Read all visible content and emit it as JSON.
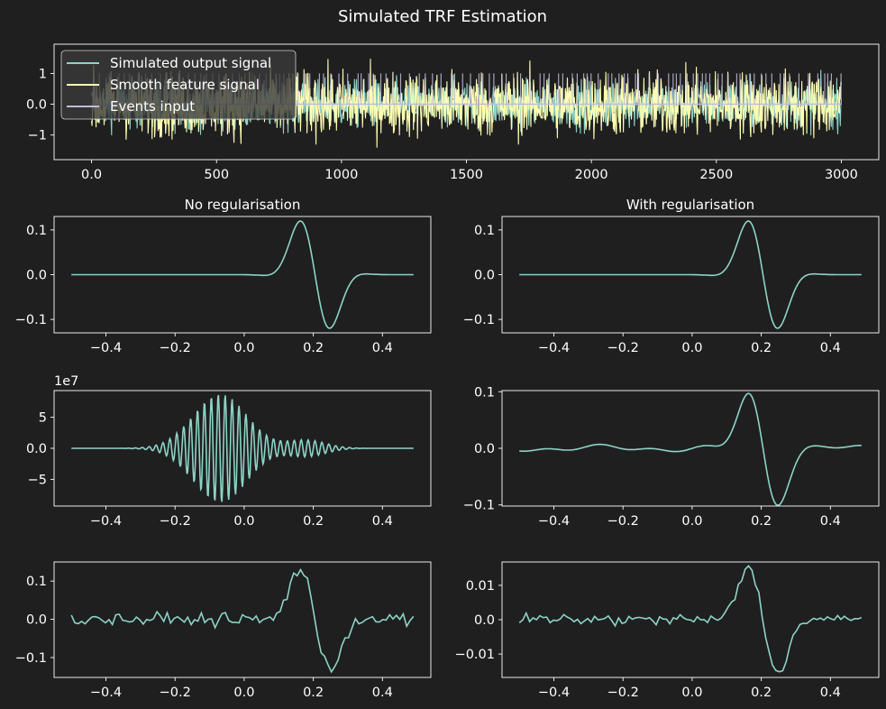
{
  "figure": {
    "title": "Simulated TRF Estimation",
    "background": "#1f1f1f",
    "axes_color": "#ffffff",
    "colors": [
      "#8dd3c7",
      "#feffb3",
      "#bfbbd9"
    ]
  },
  "chart_data": [
    {
      "type": "line",
      "title": "",
      "xlim": [
        -150,
        3150
      ],
      "ylim": [
        -1.8,
        1.95
      ],
      "xticks": [
        0,
        500,
        1000,
        1500,
        2000,
        2500,
        3000
      ],
      "yticks": [
        -1,
        0,
        1
      ],
      "legend": {
        "placement": "upper-left",
        "entries": [
          "Simulated output signal",
          "Smooth feature signal",
          "Events input"
        ]
      },
      "series": [
        {
          "name": "Simulated output signal",
          "color": "#8dd3c7",
          "kind": "noise",
          "x_range": [
            0,
            3000
          ],
          "amplitude": 0.55,
          "extreme": 1.6
        },
        {
          "name": "Smooth feature signal",
          "color": "#feffb3",
          "kind": "noise",
          "x_range": [
            0,
            3000
          ],
          "amplitude": 0.75,
          "extreme": 1.65
        },
        {
          "name": "Events input",
          "color": "#bfbbd9",
          "kind": "events",
          "x_range": [
            0,
            3000
          ],
          "value": 1
        }
      ]
    },
    {
      "type": "line",
      "title": "No regularisation",
      "xlim": [
        -0.55,
        0.54
      ],
      "ylim": [
        -0.13,
        0.13
      ],
      "xticks": [
        -0.4,
        -0.2,
        0.0,
        0.2,
        0.4
      ],
      "yticks": [
        -0.1,
        0.0,
        0.1
      ],
      "series": [
        {
          "color": "#8dd3c7",
          "kind": "gabor",
          "x_range": [
            -0.5,
            0.49
          ],
          "amp": 0.12
        }
      ]
    },
    {
      "type": "line",
      "title": "With regularisation",
      "xlim": [
        -0.55,
        0.54
      ],
      "ylim": [
        -0.13,
        0.13
      ],
      "xticks": [
        -0.4,
        -0.2,
        0.0,
        0.2,
        0.4
      ],
      "yticks": [
        -0.1,
        0.0,
        0.1
      ],
      "series": [
        {
          "color": "#8dd3c7",
          "kind": "gabor",
          "x_range": [
            -0.5,
            0.49
          ],
          "amp": 0.12
        }
      ]
    },
    {
      "type": "line",
      "title": "",
      "offset_text": "1e7",
      "xlim": [
        -0.55,
        0.54
      ],
      "ylim": [
        -9.3,
        9.3
      ],
      "xticks": [
        -0.4,
        -0.2,
        0.0,
        0.2,
        0.4
      ],
      "yticks": [
        -5,
        0,
        5
      ],
      "series": [
        {
          "color": "#8dd3c7",
          "kind": "oscillation",
          "x_range": [
            -0.5,
            0.49
          ],
          "amp": 8.8,
          "center": -0.07,
          "width": 0.11
        }
      ]
    },
    {
      "type": "line",
      "title": "",
      "xlim": [
        -0.55,
        0.54
      ],
      "ylim": [
        -0.102,
        0.102
      ],
      "xticks": [
        -0.4,
        -0.2,
        0.0,
        0.2,
        0.4
      ],
      "yticks": [
        -0.1,
        0.0,
        0.1
      ],
      "series": [
        {
          "color": "#8dd3c7",
          "kind": "gabor-wavy",
          "x_range": [
            -0.5,
            0.49
          ],
          "amp": 0.095
        }
      ]
    },
    {
      "type": "line",
      "title": "",
      "xlim": [
        -0.55,
        0.54
      ],
      "ylim": [
        -0.152,
        0.15
      ],
      "xticks": [
        -0.4,
        -0.2,
        0.0,
        0.2,
        0.4
      ],
      "yticks": [
        -0.1,
        0.0,
        0.1
      ],
      "series": [
        {
          "color": "#8dd3c7",
          "kind": "gabor-noisy",
          "x_range": [
            -0.5,
            0.49
          ],
          "amp": 0.135,
          "noise": 0.012
        }
      ]
    },
    {
      "type": "line",
      "title": "",
      "xlim": [
        -0.55,
        0.54
      ],
      "ylim": [
        -0.0168,
        0.0168
      ],
      "xticks": [
        -0.4,
        -0.2,
        0.0,
        0.2,
        0.4
      ],
      "yticks": [
        -0.01,
        0.0,
        0.01
      ],
      "series": [
        {
          "color": "#8dd3c7",
          "kind": "gabor-noisy",
          "x_range": [
            -0.5,
            0.49
          ],
          "amp": 0.015,
          "noise": 0.0012
        }
      ]
    }
  ]
}
